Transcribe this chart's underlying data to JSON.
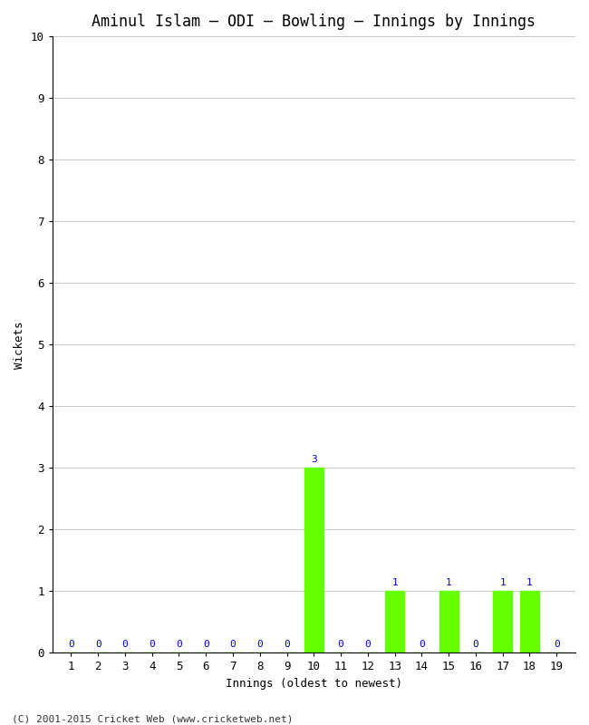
{
  "title": "Aminul Islam – ODI – Bowling – Innings by Innings",
  "xlabel": "Innings (oldest to newest)",
  "ylabel": "Wickets",
  "innings": [
    1,
    2,
    3,
    4,
    5,
    6,
    7,
    8,
    9,
    10,
    11,
    12,
    13,
    14,
    15,
    16,
    17,
    18,
    19
  ],
  "wickets": [
    0,
    0,
    0,
    0,
    0,
    0,
    0,
    0,
    0,
    3,
    0,
    0,
    1,
    0,
    1,
    0,
    1,
    1,
    0
  ],
  "bar_color": "#66ff00",
  "label_color": "#0000cc",
  "ylim": [
    0,
    10
  ],
  "yticks": [
    0,
    1,
    2,
    3,
    4,
    5,
    6,
    7,
    8,
    9,
    10
  ],
  "background_color": "#ffffff",
  "grid_color": "#cccccc",
  "footer": "(C) 2001-2015 Cricket Web (www.cricketweb.net)",
  "title_fontsize": 12,
  "axis_label_fontsize": 9,
  "tick_fontsize": 9,
  "annotation_fontsize": 8,
  "footer_fontsize": 8
}
